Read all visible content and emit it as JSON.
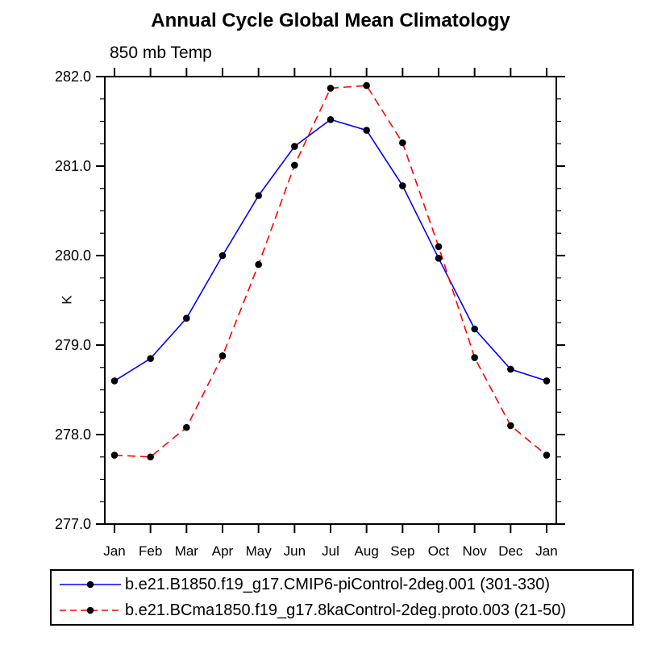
{
  "chart_data": {
    "type": "line",
    "title": "Annual Cycle Global Mean Climatology",
    "subtitle": "850 mb Temp",
    "ylabel": "K",
    "categories": [
      "Jan",
      "Feb",
      "Mar",
      "Apr",
      "May",
      "Jun",
      "Jul",
      "Aug",
      "Sep",
      "Oct",
      "Nov",
      "Dec",
      "Jan"
    ],
    "ylim": [
      277.0,
      282.0
    ],
    "ytick_major_step": 1.0,
    "ytick_minor_step": 0.25,
    "grid": false,
    "legend_position": "bottom",
    "axis_color": "#000000",
    "marker": {
      "shape": "circle",
      "color": "#000000"
    },
    "series": [
      {
        "name": "b.e21.B1850.f19_g17.CMIP6-piControl-2deg.001 (301-330)",
        "color": "#0000ff",
        "style": "solid",
        "values": [
          278.6,
          278.85,
          279.3,
          280.0,
          280.67,
          281.22,
          281.52,
          281.4,
          280.78,
          279.97,
          279.18,
          278.73,
          278.6
        ]
      },
      {
        "name": "b.e21.BCma1850.f19_g17.8kaControl-2deg.proto.003 (21-50)",
        "color": "#ff0000",
        "style": "dashed",
        "values": [
          277.77,
          277.75,
          278.08,
          278.88,
          279.9,
          281.01,
          281.87,
          281.9,
          281.26,
          280.1,
          278.86,
          278.1,
          277.77
        ]
      }
    ]
  }
}
